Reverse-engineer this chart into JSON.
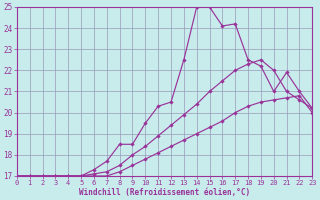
{
  "xlabel": "Windchill (Refroidissement éolien,°C)",
  "xlim": [
    0,
    23
  ],
  "ylim": [
    17,
    25
  ],
  "yticks": [
    17,
    18,
    19,
    20,
    21,
    22,
    23,
    24,
    25
  ],
  "xticks": [
    0,
    1,
    2,
    3,
    4,
    5,
    6,
    7,
    8,
    9,
    10,
    11,
    12,
    13,
    14,
    15,
    16,
    17,
    18,
    19,
    20,
    21,
    22,
    23
  ],
  "background_color": "#c8ecec",
  "grid_color": "#9999bb",
  "line_color": "#993399",
  "line1_x": [
    0,
    1,
    2,
    3,
    4,
    5,
    6,
    7,
    8,
    9,
    10,
    11,
    12,
    13,
    14,
    15,
    16,
    17,
    18,
    19,
    20,
    21,
    22,
    23
  ],
  "line1_y": [
    17,
    17,
    17,
    17,
    17,
    17,
    17,
    17,
    17.2,
    17.5,
    17.8,
    18.1,
    18.4,
    18.7,
    19.0,
    19.3,
    19.6,
    20.0,
    20.3,
    20.5,
    20.6,
    20.7,
    20.8,
    20.0
  ],
  "line2_x": [
    0,
    1,
    2,
    3,
    4,
    5,
    6,
    7,
    8,
    9,
    10,
    11,
    12,
    13,
    14,
    15,
    16,
    17,
    18,
    19,
    20,
    21,
    22,
    23
  ],
  "line2_y": [
    17,
    17,
    17,
    17,
    17,
    17,
    17.1,
    17.2,
    17.5,
    18.0,
    18.4,
    18.9,
    19.4,
    19.9,
    20.4,
    21.0,
    21.5,
    22.0,
    22.3,
    22.5,
    22.0,
    21.0,
    20.6,
    20.2
  ],
  "line3_x": [
    0,
    1,
    2,
    3,
    4,
    5,
    6,
    7,
    8,
    9,
    10,
    11,
    12,
    13,
    14,
    15,
    16,
    17,
    18,
    19,
    20,
    21,
    22,
    23
  ],
  "line3_y": [
    17,
    17,
    17,
    17,
    17,
    17,
    17.3,
    17.7,
    18.5,
    18.5,
    19.5,
    20.3,
    20.5,
    22.5,
    25.0,
    25.0,
    24.1,
    24.2,
    22.5,
    22.2,
    21.0,
    21.9,
    21.0,
    20.2
  ]
}
